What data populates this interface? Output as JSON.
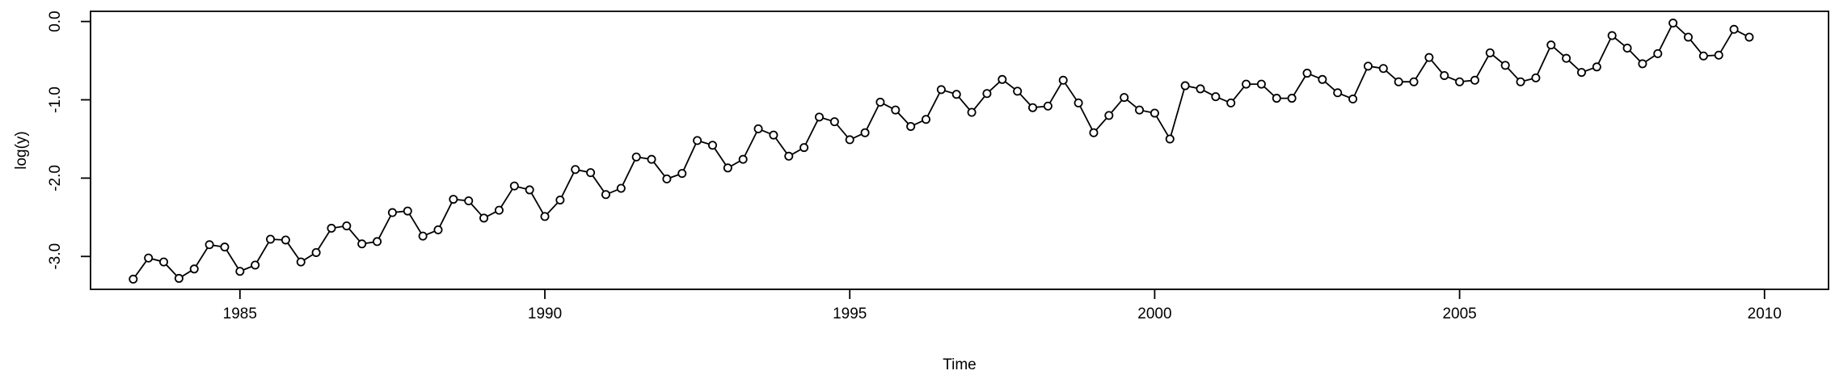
{
  "chart_data": {
    "type": "line",
    "xlabel": "Time",
    "ylabel": "log(y)",
    "xlim": [
      1982.55,
      2011.05
    ],
    "ylim": [
      -3.42,
      0.13
    ],
    "x_ticks": [
      1985,
      1990,
      1995,
      2000,
      2005,
      2010
    ],
    "x_tick_labels": [
      "1985",
      "1990",
      "1995",
      "2000",
      "2005",
      "2010"
    ],
    "y_ticks": [
      0,
      -1,
      -2,
      -3
    ],
    "y_tick_labels": [
      "0.0",
      "-1.0",
      "-2.0",
      "-3.0"
    ],
    "grid": false,
    "legend": "none",
    "marker": "open-circle",
    "line_color": "#000000",
    "series": [
      {
        "x": [
          1983.25,
          1983.5,
          1983.75,
          1984.0,
          1984.25,
          1984.5,
          1984.75,
          1985.0,
          1985.25,
          1985.5,
          1985.75,
          1986.0,
          1986.25,
          1986.5,
          1986.75,
          1987.0,
          1987.25,
          1987.5,
          1987.75,
          1988.0,
          1988.25,
          1988.5,
          1988.75,
          1989.0,
          1989.25,
          1989.5,
          1989.75,
          1990.0,
          1990.25,
          1990.5,
          1990.75,
          1991.0,
          1991.25,
          1991.5,
          1991.75,
          1992.0,
          1992.25,
          1992.5,
          1992.75,
          1993.0,
          1993.25,
          1993.5,
          1993.75,
          1994.0,
          1994.25,
          1994.5,
          1994.75,
          1995.0,
          1995.25,
          1995.5,
          1995.75,
          1996.0,
          1996.25,
          1996.5,
          1996.75,
          1997.0,
          1997.25,
          1997.5,
          1997.75,
          1998.0,
          1998.25,
          1998.5,
          1998.75,
          1999.0,
          1999.25,
          1999.5,
          1999.75,
          2000.0,
          2000.25,
          2000.5,
          2000.75,
          2001.0,
          2001.25,
          2001.5,
          2001.75,
          2002.0,
          2002.25,
          2002.5,
          2002.75,
          2003.0,
          2003.25,
          2003.5,
          2003.75,
          2004.0,
          2004.25,
          2004.5,
          2004.75,
          2005.0,
          2005.25,
          2005.5,
          2005.75,
          2006.0,
          2006.25,
          2006.5,
          2006.75,
          2007.0,
          2007.25,
          2007.5,
          2007.75,
          2008.0,
          2008.25,
          2008.5,
          2008.75,
          2009.0,
          2009.25,
          2009.5,
          2009.75
        ],
        "values": [
          -3.29,
          -3.02,
          -3.07,
          -3.28,
          -3.16,
          -2.85,
          -2.88,
          -3.19,
          -3.11,
          -2.78,
          -2.79,
          -3.07,
          -2.95,
          -2.64,
          -2.61,
          -2.84,
          -2.81,
          -2.44,
          -2.42,
          -2.74,
          -2.66,
          -2.27,
          -2.29,
          -2.51,
          -2.41,
          -2.1,
          -2.15,
          -2.49,
          -2.28,
          -1.89,
          -1.93,
          -2.21,
          -2.13,
          -1.73,
          -1.76,
          -2.01,
          -1.94,
          -1.52,
          -1.58,
          -1.87,
          -1.76,
          -1.37,
          -1.45,
          -1.72,
          -1.61,
          -1.22,
          -1.28,
          -1.51,
          -1.42,
          -1.03,
          -1.13,
          -1.34,
          -1.25,
          -0.87,
          -0.93,
          -1.16,
          -0.92,
          -0.74,
          -0.89,
          -1.1,
          -1.08,
          -0.75,
          -1.04,
          -1.42,
          -1.2,
          -0.97,
          -1.13,
          -1.17,
          -1.5,
          -0.82,
          -0.86,
          -0.96,
          -1.04,
          -0.8,
          -0.8,
          -0.98,
          -0.98,
          -0.66,
          -0.74,
          -0.91,
          -0.99,
          -0.57,
          -0.6,
          -0.77,
          -0.77,
          -0.46,
          -0.69,
          -0.77,
          -0.75,
          -0.4,
          -0.56,
          -0.77,
          -0.72,
          -0.3,
          -0.47,
          -0.65,
          -0.58,
          -0.18,
          -0.34,
          -0.54,
          -0.41,
          -0.02,
          -0.2,
          -0.44,
          -0.43,
          -0.1,
          -0.2
        ]
      }
    ]
  }
}
